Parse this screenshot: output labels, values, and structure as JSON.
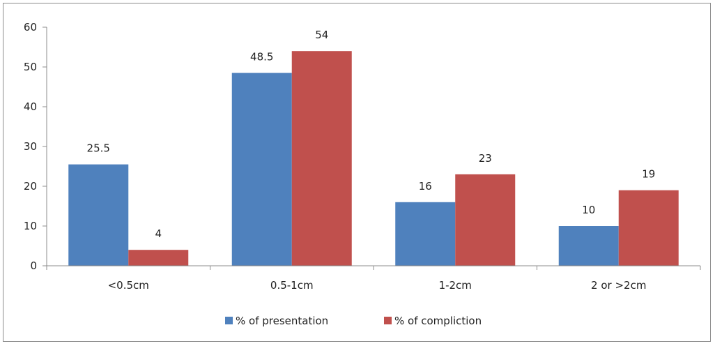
{
  "chart_data": {
    "type": "bar",
    "categories": [
      "<0.5cm",
      "0.5-1cm",
      "1-2cm",
      "2 or >2cm"
    ],
    "series": [
      {
        "name": "% of presentation",
        "values": [
          25.5,
          48.5,
          16,
          10
        ],
        "color": "#4f81bd"
      },
      {
        "name": "% of compliction",
        "values": [
          4,
          54,
          23,
          19
        ],
        "color": "#c0504d"
      }
    ],
    "data_labels": [
      [
        "25.5",
        "48.5",
        "16",
        "10"
      ],
      [
        "4",
        "54",
        "23",
        "19"
      ]
    ],
    "ylim": [
      0,
      60
    ],
    "yticks": [
      0,
      10,
      20,
      30,
      40,
      50,
      60
    ],
    "grid": false,
    "legend_position": "bottom"
  }
}
